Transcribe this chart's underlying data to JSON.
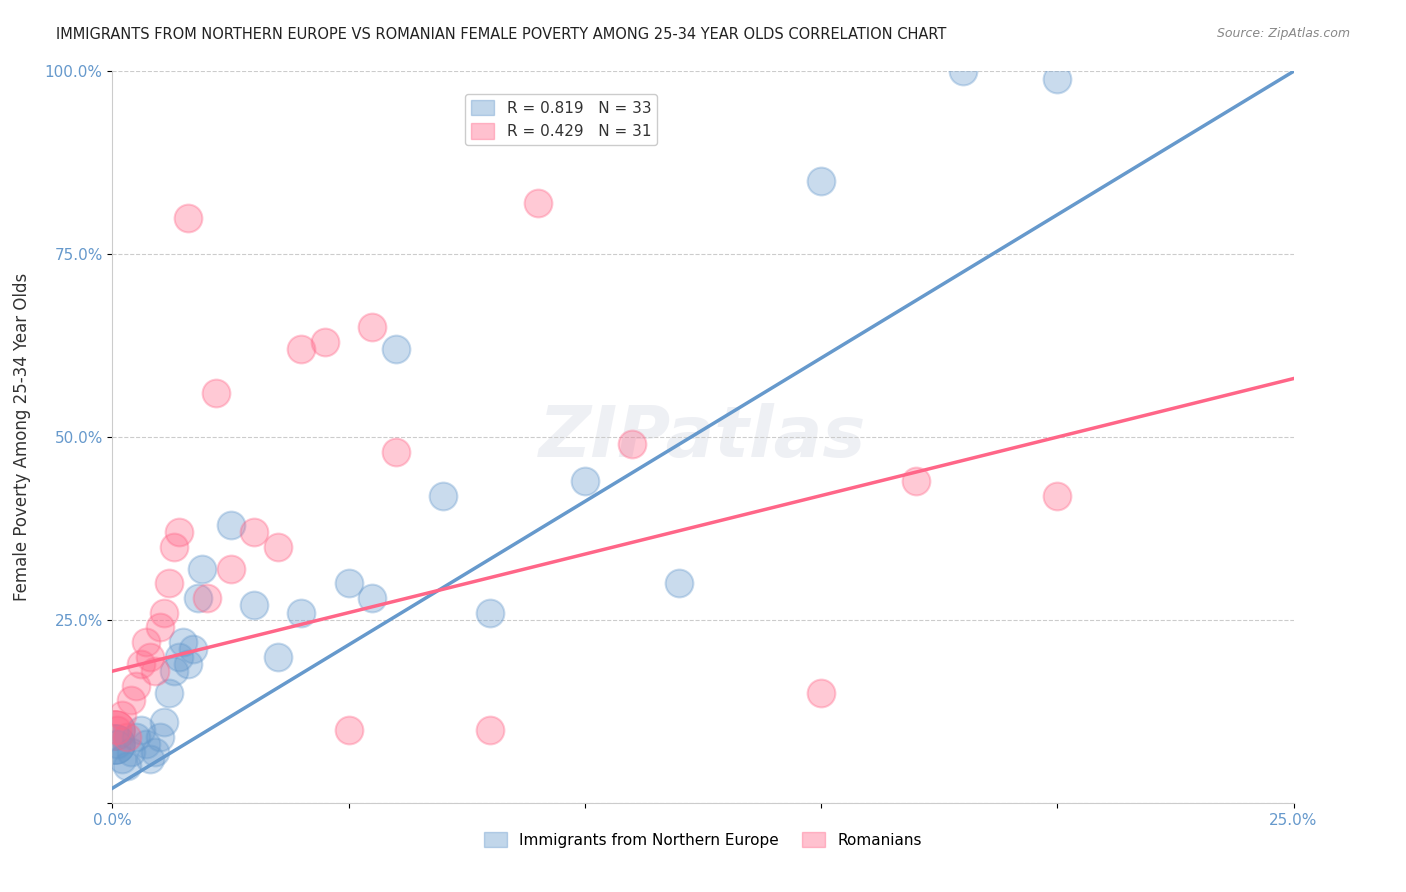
{
  "title": "IMMIGRANTS FROM NORTHERN EUROPE VS ROMANIAN FEMALE POVERTY AMONG 25-34 YEAR OLDS CORRELATION CHART",
  "source": "Source: ZipAtlas.com",
  "xlabel": "",
  "ylabel": "Female Poverty Among 25-34 Year Olds",
  "xlim": [
    0,
    0.25
  ],
  "ylim": [
    0,
    1.0
  ],
  "xticks": [
    0.0,
    0.05,
    0.1,
    0.15,
    0.2,
    0.25
  ],
  "yticks": [
    0.0,
    0.25,
    0.5,
    0.75,
    1.0
  ],
  "xtick_labels": [
    "0.0%",
    "",
    "",
    "",
    "",
    "25.0%"
  ],
  "ytick_labels_left": [
    "",
    "25.0%",
    "50.0%",
    "75.0%",
    "100.0%"
  ],
  "background_color": "#ffffff",
  "watermark": "ZIPatlas",
  "legend_blue_label": "Immigrants from Northern Europe",
  "legend_pink_label": "Romanians",
  "R_blue": 0.819,
  "N_blue": 33,
  "R_pink": 0.429,
  "N_pink": 31,
  "blue_color": "#6699cc",
  "pink_color": "#ff6688",
  "blue_scatter": [
    [
      0.001,
      0.08
    ],
    [
      0.002,
      0.06
    ],
    [
      0.003,
      0.05
    ],
    [
      0.004,
      0.07
    ],
    [
      0.005,
      0.09
    ],
    [
      0.006,
      0.1
    ],
    [
      0.007,
      0.08
    ],
    [
      0.008,
      0.06
    ],
    [
      0.009,
      0.07
    ],
    [
      0.01,
      0.09
    ],
    [
      0.011,
      0.11
    ],
    [
      0.012,
      0.15
    ],
    [
      0.013,
      0.18
    ],
    [
      0.014,
      0.2
    ],
    [
      0.015,
      0.22
    ],
    [
      0.016,
      0.19
    ],
    [
      0.017,
      0.21
    ],
    [
      0.018,
      0.28
    ],
    [
      0.019,
      0.32
    ],
    [
      0.025,
      0.38
    ],
    [
      0.03,
      0.27
    ],
    [
      0.035,
      0.2
    ],
    [
      0.04,
      0.26
    ],
    [
      0.05,
      0.3
    ],
    [
      0.055,
      0.28
    ],
    [
      0.06,
      0.62
    ],
    [
      0.07,
      0.42
    ],
    [
      0.08,
      0.26
    ],
    [
      0.1,
      0.44
    ],
    [
      0.12,
      0.3
    ],
    [
      0.15,
      0.85
    ],
    [
      0.18,
      1.0
    ],
    [
      0.2,
      0.99
    ]
  ],
  "pink_scatter": [
    [
      0.001,
      0.1
    ],
    [
      0.002,
      0.12
    ],
    [
      0.003,
      0.09
    ],
    [
      0.004,
      0.14
    ],
    [
      0.005,
      0.16
    ],
    [
      0.006,
      0.19
    ],
    [
      0.007,
      0.22
    ],
    [
      0.008,
      0.2
    ],
    [
      0.009,
      0.18
    ],
    [
      0.01,
      0.24
    ],
    [
      0.011,
      0.26
    ],
    [
      0.012,
      0.3
    ],
    [
      0.013,
      0.35
    ],
    [
      0.014,
      0.37
    ],
    [
      0.02,
      0.28
    ],
    [
      0.025,
      0.32
    ],
    [
      0.03,
      0.37
    ],
    [
      0.035,
      0.35
    ],
    [
      0.04,
      0.62
    ],
    [
      0.045,
      0.63
    ],
    [
      0.055,
      0.65
    ],
    [
      0.06,
      0.48
    ],
    [
      0.08,
      0.1
    ],
    [
      0.09,
      0.82
    ],
    [
      0.15,
      0.15
    ],
    [
      0.17,
      0.44
    ],
    [
      0.2,
      0.42
    ],
    [
      0.016,
      0.8
    ],
    [
      0.022,
      0.56
    ],
    [
      0.05,
      0.1
    ],
    [
      0.11,
      0.49
    ]
  ],
  "blue_line_x": [
    0.0,
    0.25
  ],
  "blue_line_y": [
    0.02,
    1.0
  ],
  "pink_line_x": [
    0.0,
    0.25
  ],
  "pink_line_y": [
    0.18,
    0.58
  ]
}
